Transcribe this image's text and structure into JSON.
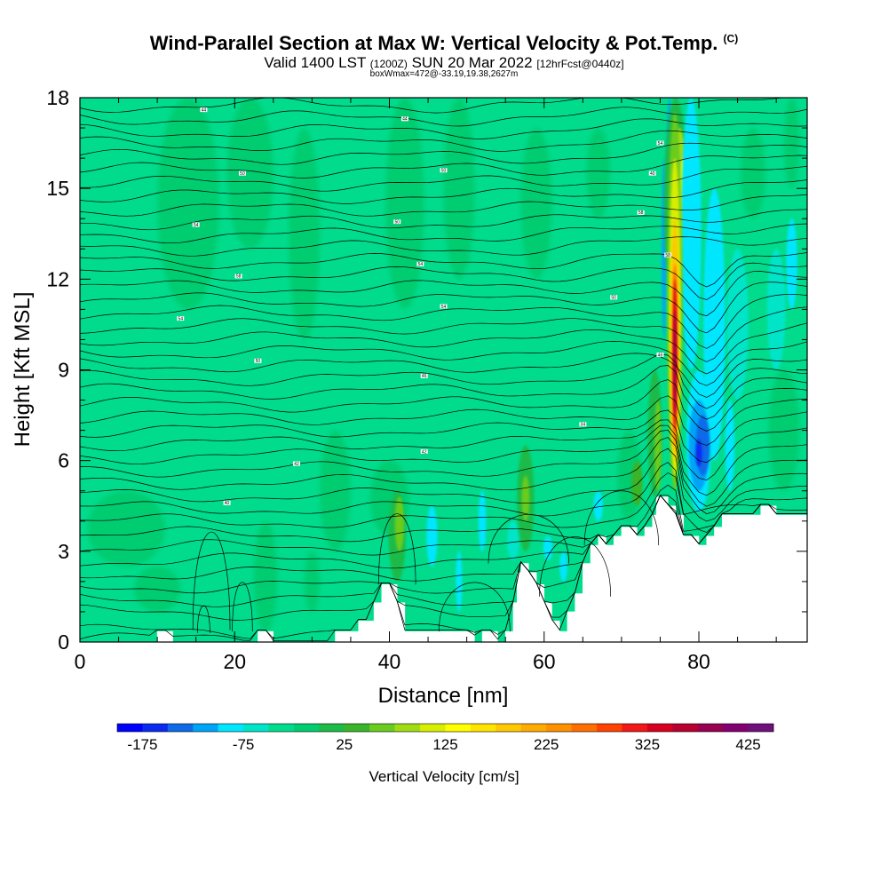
{
  "chart_data": {
    "type": "heatmap",
    "title": "Wind-Parallel Section at Max W: Vertical Velocity & Pot.Temp.",
    "title_mark": "(C)",
    "subtitle_pre": "Valid 1400 LST",
    "subtitle_z": "(1200Z)",
    "subtitle_mid": "SUN 20 Mar 2022",
    "subtitle_fcst": "[12hrFcst@0440z]",
    "box_info": "boxWmax=472@-33.19,19.38,2627m",
    "xlabel": "Distance [nm]",
    "ylabel": "Height [Kft MSL]",
    "xlim": [
      0,
      94
    ],
    "ylim": [
      0,
      18
    ],
    "x_ticks": [
      0,
      20,
      40,
      60,
      80
    ],
    "y_ticks": [
      0,
      3,
      6,
      9,
      12,
      15,
      18
    ],
    "colorbar_label": "Vertical Velocity [cm/s]",
    "colorbar_ticks": [
      -175,
      -75,
      25,
      125,
      225,
      325,
      425
    ],
    "colorbar_levels": [
      -200,
      -175,
      -150,
      -125,
      -100,
      -75,
      -50,
      -25,
      0,
      25,
      50,
      75,
      100,
      125,
      150,
      175,
      200,
      225,
      250,
      275,
      300,
      325,
      350,
      375,
      400,
      425,
      450
    ],
    "colorbar_colors": [
      "#0000ff",
      "#0a2af0",
      "#0f6ae8",
      "#00a4f6",
      "#00e6ff",
      "#00e4c8",
      "#00dc8c",
      "#00cc70",
      "#1dbb48",
      "#3ab428",
      "#6acc1e",
      "#a0dc14",
      "#d8ee00",
      "#ffff00",
      "#ffe400",
      "#ffc800",
      "#ffac00",
      "#ff9000",
      "#ff6e00",
      "#ff4200",
      "#f01818",
      "#d80020",
      "#b80030",
      "#980050",
      "#820070",
      "#70107a"
    ],
    "theta_contour_labels": [
      "44",
      "44",
      "54",
      "50",
      "50",
      "40",
      "54",
      "50",
      "58",
      "58",
      "54",
      "58",
      "54",
      "54",
      "50",
      "50",
      "46",
      "46",
      "42",
      "42",
      "40",
      "34"
    ],
    "terrain_profile_kft": [
      [
        0,
        0
      ],
      [
        10,
        0
      ],
      [
        10,
        0.35
      ],
      [
        12,
        0.35
      ],
      [
        12,
        0
      ],
      [
        23,
        0
      ],
      [
        23,
        0.35
      ],
      [
        25,
        0.35
      ],
      [
        25,
        0
      ],
      [
        33,
        0
      ],
      [
        33,
        0.35
      ],
      [
        36,
        0.35
      ],
      [
        36,
        0.7
      ],
      [
        38,
        0.7
      ],
      [
        38,
        1.3
      ],
      [
        39,
        1.3
      ],
      [
        39,
        1.9
      ],
      [
        41,
        1.9
      ],
      [
        41,
        1.3
      ],
      [
        42,
        1.3
      ],
      [
        42,
        0.35
      ],
      [
        51,
        0.35
      ],
      [
        51,
        0
      ],
      [
        52,
        0
      ],
      [
        52,
        0.35
      ],
      [
        54,
        0.35
      ],
      [
        54,
        0
      ],
      [
        55,
        0
      ],
      [
        55,
        0.35
      ],
      [
        56,
        0.35
      ],
      [
        56,
        1.3
      ],
      [
        56.5,
        1.3
      ],
      [
        56.5,
        2.3
      ],
      [
        57,
        2.3
      ],
      [
        57,
        2.6
      ],
      [
        58,
        2.6
      ],
      [
        58,
        2.3
      ],
      [
        59,
        2.3
      ],
      [
        59,
        1.9
      ],
      [
        60,
        1.9
      ],
      [
        60,
        1.3
      ],
      [
        61,
        1.3
      ],
      [
        61,
        0.7
      ],
      [
        62,
        0.7
      ],
      [
        62,
        0.35
      ],
      [
        63,
        0.35
      ],
      [
        63,
        1.0
      ],
      [
        64,
        1.0
      ],
      [
        64,
        1.6
      ],
      [
        65,
        1.6
      ],
      [
        65,
        2.6
      ],
      [
        66,
        2.6
      ],
      [
        66,
        3.2
      ],
      [
        67,
        3.2
      ],
      [
        67,
        3.5
      ],
      [
        68,
        3.5
      ],
      [
        68,
        3.2
      ],
      [
        69,
        3.2
      ],
      [
        69,
        3.5
      ],
      [
        70,
        3.5
      ],
      [
        70,
        3.8
      ],
      [
        72,
        3.8
      ],
      [
        72,
        3.5
      ],
      [
        73,
        3.5
      ],
      [
        73,
        3.8
      ],
      [
        74,
        3.8
      ],
      [
        74,
        4.2
      ],
      [
        74.5,
        4.2
      ],
      [
        74.5,
        4.8
      ],
      [
        76,
        4.8
      ],
      [
        76,
        4.5
      ],
      [
        77,
        4.5
      ],
      [
        77,
        4.2
      ],
      [
        78,
        4.2
      ],
      [
        78,
        3.5
      ],
      [
        80,
        3.5
      ],
      [
        80,
        3.2
      ],
      [
        81,
        3.2
      ],
      [
        81,
        3.5
      ],
      [
        82,
        3.5
      ],
      [
        82,
        3.8
      ],
      [
        83,
        3.8
      ],
      [
        83,
        4.2
      ],
      [
        88,
        4.2
      ],
      [
        88,
        4.5
      ],
      [
        90,
        4.5
      ],
      [
        90,
        4.2
      ],
      [
        94,
        4.2
      ]
    ]
  }
}
